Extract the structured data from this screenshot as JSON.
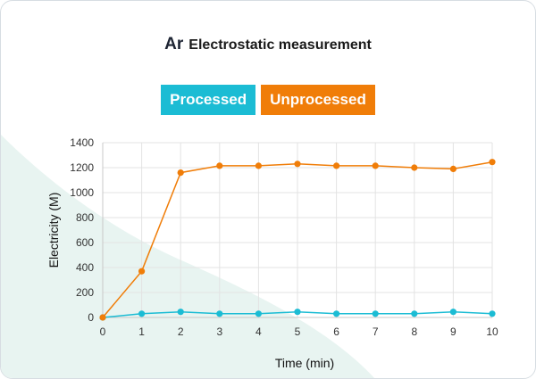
{
  "header": {
    "symbol": "Ar",
    "title": "Electrostatic measurement"
  },
  "colors": {
    "processed": "#1bbcd4",
    "unprocessed": "#f07d08",
    "background_blob": "#e8f4f1"
  },
  "chart_data": {
    "type": "line",
    "xlabel": "Time (min)",
    "ylabel": "Electricity (M)",
    "xlim": [
      0,
      10
    ],
    "ylim": [
      0,
      1400
    ],
    "x_ticks": [
      "0",
      "1",
      "2",
      "3",
      "4",
      "5",
      "6",
      "7",
      "8",
      "9",
      "10"
    ],
    "y_ticks": [
      "0",
      "200",
      "400",
      "600",
      "800",
      "1000",
      "1200",
      "1400"
    ],
    "grid": true,
    "legend_position": "top-center",
    "x": [
      0,
      1,
      2,
      3,
      4,
      5,
      6,
      7,
      8,
      9,
      10
    ],
    "series": [
      {
        "name": "Processed",
        "color": "#1bbcd4",
        "values": [
          0,
          30,
          45,
          30,
          30,
          45,
          30,
          30,
          30,
          45,
          30
        ]
      },
      {
        "name": "Unprocessed",
        "color": "#f07d08",
        "values": [
          0,
          370,
          1160,
          1215,
          1215,
          1230,
          1215,
          1215,
          1200,
          1190,
          1245
        ]
      }
    ]
  }
}
